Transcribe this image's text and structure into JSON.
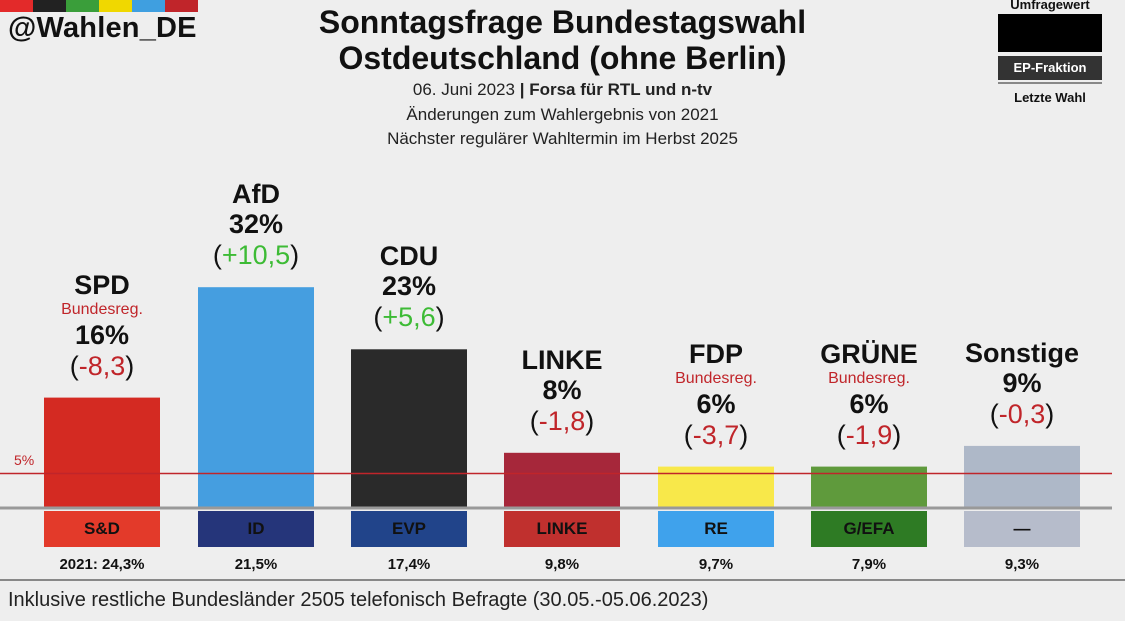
{
  "header": {
    "handle": "@Wahlen_DE",
    "title_line1": "Sonntagsfrage Bundestagswahl",
    "title_line2": "Ostdeutschland (ohne Berlin)",
    "date": "06. Juni 2023",
    "separator": "|",
    "pollster": "Forsa für RTL und n-tv",
    "change_note": "Änderungen zum Wahlergebnis von 2021",
    "next_election": "Nächster regulärer Wahltermin im Herbst 2025",
    "brand_colors": [
      "#e32a2a",
      "#222222",
      "#3a9e3a",
      "#f0d800",
      "#3f9fe0",
      "#c0252a"
    ]
  },
  "legend": {
    "top_label": "Umfragewert",
    "middle_label": "EP-Fraktion",
    "bottom_label": "Letzte Wahl"
  },
  "chart_data": {
    "type": "bar",
    "title": "Sonntagsfrage Bundestagswahl Ostdeutschland (ohne Berlin)",
    "threshold": {
      "value": 5,
      "label": "5%"
    },
    "categories": [
      "SPD",
      "AfD",
      "CDU",
      "LINKE",
      "FDP",
      "GRÜNE",
      "Sonstige"
    ],
    "values": [
      16,
      32,
      23,
      8,
      6,
      6,
      9
    ],
    "percent_labels": [
      "16%",
      "32%",
      "23%",
      "8%",
      "6%",
      "6%",
      "9%"
    ],
    "changes": [
      "-8,3",
      "+10,5",
      "+5,6",
      "-1,8",
      "-3,7",
      "-1,9",
      "-0,3"
    ],
    "change_sign": [
      "neg",
      "pos",
      "pos",
      "neg",
      "neg",
      "neg",
      "neg"
    ],
    "government_note": [
      "Bundesreg.",
      "",
      "",
      "",
      "Bundesreg.",
      "Bundesreg.",
      ""
    ],
    "ep_factions": [
      "S&D",
      "ID",
      "EVP",
      "LINKE",
      "RE",
      "G/EFA",
      "—"
    ],
    "last_election": [
      "2021: 24,3%",
      "21,5%",
      "17,4%",
      "9,8%",
      "9,7%",
      "7,9%",
      "9,3%"
    ],
    "bar_colors": [
      "#d42a22",
      "#459ee0",
      "#2a2a2a",
      "#a6273a",
      "#f8e84a",
      "#5f9a3c",
      "#aeb8c8"
    ],
    "faction_colors": [
      "#e33a2a",
      "#25357a",
      "#21448a",
      "#c0302e",
      "#3fa2ec",
      "#2e7b24",
      "#b6bccb"
    ],
    "faction_text_colors": [
      "#111111",
      "#111111",
      "#111111",
      "#111111",
      "#111111",
      "#111111",
      "#111111"
    ]
  },
  "footer": {
    "note": "Inklusive restliche Bundesländer 2505 telefonisch Befragte (30.05.-05.06.2023)"
  }
}
